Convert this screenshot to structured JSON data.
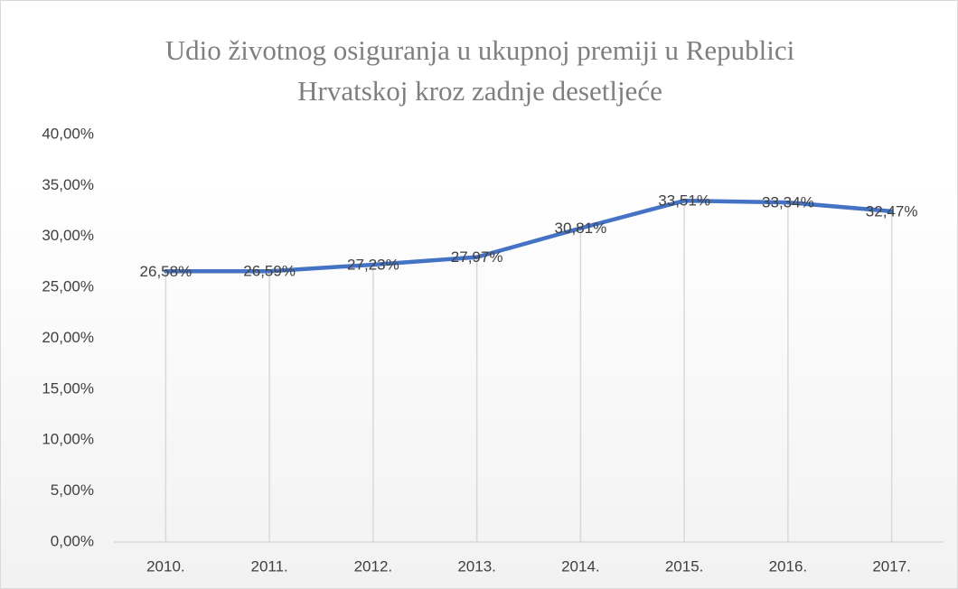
{
  "chart_data": {
    "type": "line",
    "title": "Udio životnog osiguranja u ukupnoj premiji u Republici Hrvatskoj kroz zadnje desetljeće",
    "categories": [
      "2010.",
      "2011.",
      "2012.",
      "2013.",
      "2014.",
      "2015.",
      "2016.",
      "2017."
    ],
    "series": [
      {
        "name": "Udio",
        "color": "#4472c4",
        "values": [
          26.58,
          26.59,
          27.23,
          27.97,
          30.81,
          33.51,
          33.34,
          32.47
        ],
        "value_labels": [
          "26,58%",
          "26,59%",
          "27,23%",
          "27,97%",
          "30,81%",
          "33,51%",
          "33,34%",
          "32,47%"
        ]
      }
    ],
    "ylim": [
      0,
      40
    ],
    "yticks": [
      {
        "value": 0,
        "label": "0,00%"
      },
      {
        "value": 5,
        "label": "5,00%"
      },
      {
        "value": 10,
        "label": "10,00%"
      },
      {
        "value": 15,
        "label": "15,00%"
      },
      {
        "value": 20,
        "label": "20,00%"
      },
      {
        "value": 25,
        "label": "25,00%"
      },
      {
        "value": 30,
        "label": "30,00%"
      },
      {
        "value": 35,
        "label": "35,00%"
      },
      {
        "value": 40,
        "label": "40,00%"
      }
    ],
    "drop_lines": true
  }
}
